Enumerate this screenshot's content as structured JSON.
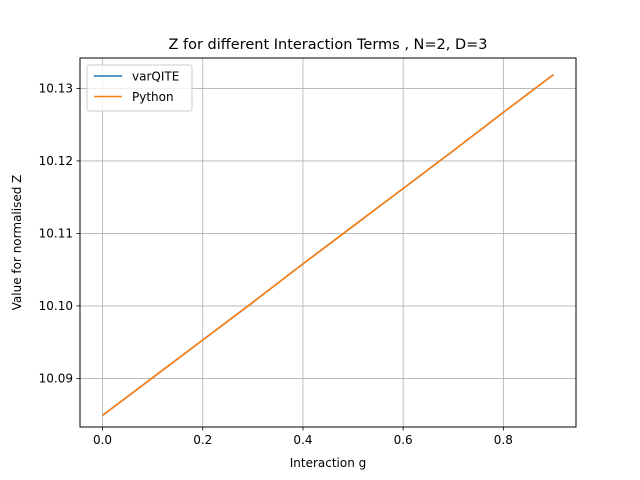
{
  "chart_data": {
    "type": "line",
    "title": "Z for different Interaction Terms , N=2, D=3",
    "xlabel": "Interaction g",
    "ylabel": "Value for normalised Z",
    "xlim": [
      -0.045,
      0.945
    ],
    "ylim": [
      10.0833,
      10.1342
    ],
    "xticks": [
      0.0,
      0.2,
      0.4,
      0.6,
      0.8
    ],
    "xtick_labels": [
      "0.0",
      "0.2",
      "0.4",
      "0.6",
      "0.8"
    ],
    "yticks": [
      10.09,
      10.1,
      10.11,
      10.12,
      10.13
    ],
    "ytick_labels": [
      "10.09",
      "10.10",
      "10.11",
      "10.12",
      "10.13"
    ],
    "grid": true,
    "legend_position": "upper-left",
    "series": [
      {
        "name": "varQITE",
        "color": "#1f77b4",
        "x": [
          0.0,
          0.1,
          0.2,
          0.3,
          0.4,
          0.5,
          0.6,
          0.7,
          0.8,
          0.9
        ],
        "y": [
          10.0849,
          10.0901,
          10.0953,
          10.1005,
          10.1058,
          10.111,
          10.1162,
          10.1214,
          10.1267,
          10.1319
        ]
      },
      {
        "name": "Python",
        "color": "#ff7f0e",
        "x": [
          0.0,
          0.1,
          0.2,
          0.3,
          0.4,
          0.5,
          0.6,
          0.7,
          0.8,
          0.9
        ],
        "y": [
          10.0849,
          10.0901,
          10.0953,
          10.1005,
          10.1058,
          10.111,
          10.1162,
          10.1214,
          10.1267,
          10.1319
        ]
      }
    ]
  }
}
